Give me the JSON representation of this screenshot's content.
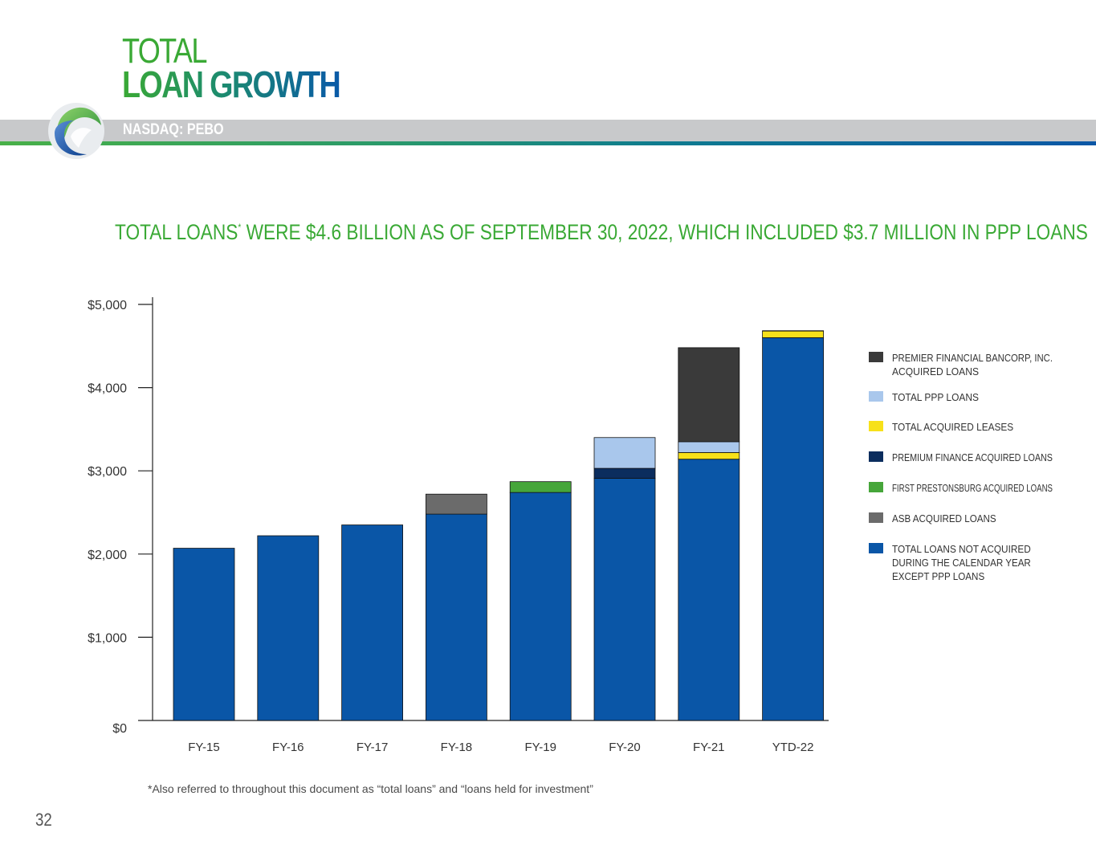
{
  "title": {
    "line1": "TOTAL",
    "line2": "LOAN GROWTH"
  },
  "ticker": "NASDAQ: PEBO",
  "headline": {
    "part1": "TOTAL LOANS",
    "marker": "*",
    "part2": " WERE $4.6 BILLION AS OF SEPTEMBER 30, 2022, WHICH INCLUDED $3.7 MILLION IN PPP LOANS"
  },
  "footnote": "*Also referred to throughout this document as “total loans” and “loans held for investment”",
  "page_number": "32",
  "colors": {
    "green": "#3aa935",
    "blue": "#0a56a7"
  },
  "chart_data": {
    "type": "bar",
    "stacked": true,
    "title": "",
    "xlabel": "",
    "ylabel": "",
    "ylim": [
      0,
      5000
    ],
    "y_ticks": [
      {
        "value": 0,
        "label": "$0"
      },
      {
        "value": 1000,
        "label": "$1,000"
      },
      {
        "value": 2000,
        "label": "$2,000"
      },
      {
        "value": 3000,
        "label": "$3,000"
      },
      {
        "value": 4000,
        "label": "$4,000"
      },
      {
        "value": 5000,
        "label": "$5,000"
      }
    ],
    "categories": [
      "FY-15",
      "FY-16",
      "FY-17",
      "FY-18",
      "FY-19",
      "FY-20",
      "FY-21",
      "YTD-22"
    ],
    "legend_position": "right",
    "series": [
      {
        "key": "not_acquired",
        "name": "TOTAL LOANS NOT ACQUIRED DURING THE CALENDAR YEAR EXCEPT PPP LOANS",
        "legend_lines": [
          "TOTAL LOANS NOT ACQUIRED",
          "DURING THE CALENDAR YEAR",
          "EXCEPT PPP LOANS"
        ],
        "color": "#0a56a7",
        "values": [
          2070,
          2220,
          2350,
          2480,
          2740,
          2910,
          3140,
          4600
        ]
      },
      {
        "key": "asb",
        "name": "ASB ACQUIRED LOANS",
        "legend_lines": [
          "ASB ACQUIRED LOANS"
        ],
        "color": "#6b6b6b",
        "values": [
          0,
          0,
          0,
          240,
          0,
          0,
          0,
          0
        ]
      },
      {
        "key": "first_prestonsburg",
        "name": "FIRST PRESTONSBURG ACQUIRED LOANS",
        "legend_lines": [
          "FIRST PRESTONSBURG ACQUIRED LOANS"
        ],
        "color": "#46a63a",
        "values": [
          0,
          0,
          0,
          0,
          130,
          0,
          0,
          0
        ]
      },
      {
        "key": "premium_finance",
        "name": "PREMIUM FINANCE ACQUIRED LOANS",
        "legend_lines": [
          "PREMIUM FINANCE ACQUIRED LOANS"
        ],
        "color": "#0b2d5e",
        "values": [
          0,
          0,
          0,
          0,
          0,
          120,
          0,
          0
        ]
      },
      {
        "key": "acquired_leases",
        "name": "TOTAL ACQUIRED LEASES",
        "legend_lines": [
          "TOTAL ACQUIRED LEASES"
        ],
        "color": "#f7e11a",
        "values": [
          0,
          0,
          0,
          0,
          0,
          0,
          80,
          80
        ]
      },
      {
        "key": "ppp",
        "name": "TOTAL PPP LOANS",
        "legend_lines": [
          "TOTAL PPP LOANS"
        ],
        "color": "#a9c7ec",
        "values": [
          0,
          0,
          0,
          0,
          0,
          370,
          130,
          4
        ]
      },
      {
        "key": "premier",
        "name": "PREMIER FINANCIAL BANCORP, INC. ACQUIRED LOANS",
        "legend_lines": [
          "PREMIER FINANCIAL BANCORP, INC.",
          " ACQUIRED LOANS"
        ],
        "color": "#3a3a3a",
        "values": [
          0,
          0,
          0,
          0,
          0,
          0,
          1130,
          0
        ]
      }
    ],
    "legend_order": [
      "premier",
      "ppp",
      "acquired_leases",
      "premium_finance",
      "first_prestonsburg",
      "asb",
      "not_acquired"
    ]
  }
}
